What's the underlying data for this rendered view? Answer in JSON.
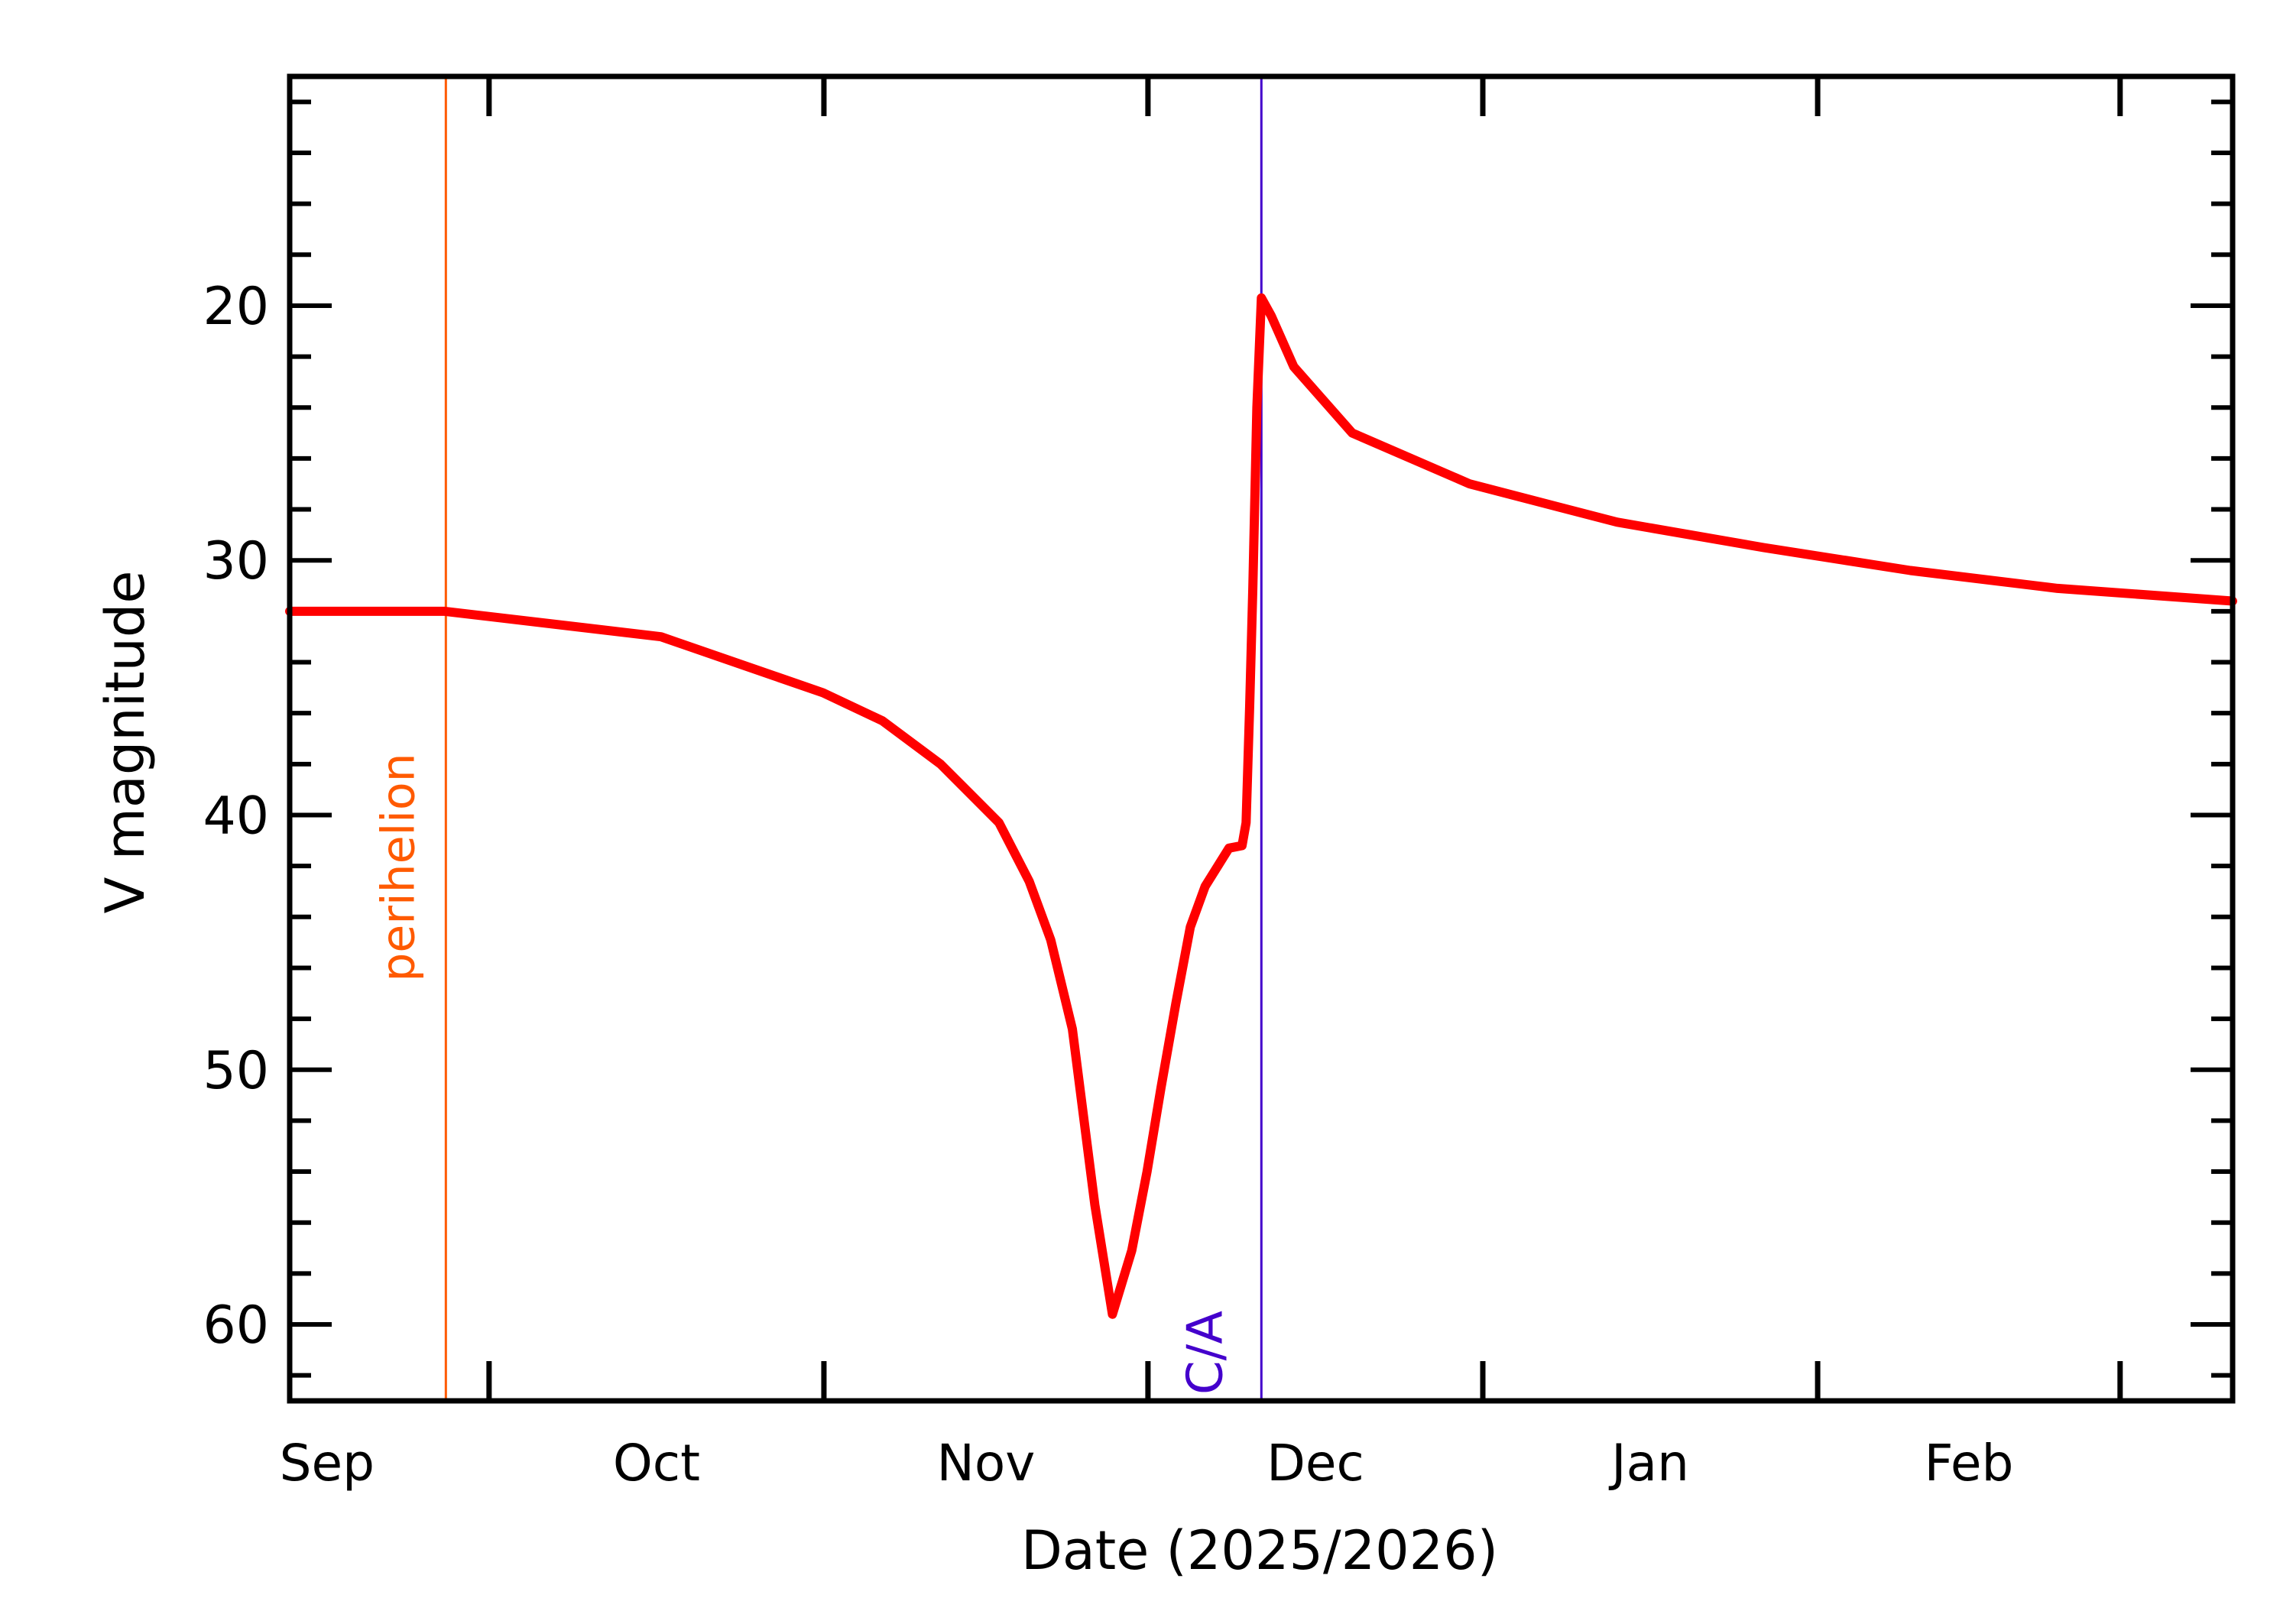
{
  "chart_data": {
    "type": "line",
    "title": "",
    "xlabel": "Date (2025/2026)",
    "ylabel": "V magnitude",
    "xlim": [
      "2025-09-12T13:00",
      "2026-03-11T10:00"
    ],
    "ylim": [
      11,
      63
    ],
    "y_inverted": true,
    "grid": false,
    "x_tick_labels": [
      {
        "label": "Sep",
        "at": "2025-09-16T00:00"
      },
      {
        "label": "Oct",
        "at": "2025-10-16T12:00"
      },
      {
        "label": "Nov",
        "at": "2025-11-16T00:00"
      },
      {
        "label": "Dec",
        "at": "2025-12-16T12:00"
      },
      {
        "label": "Jan",
        "at": "2026-01-16T12:00"
      },
      {
        "label": "Feb",
        "at": "2026-02-15T00:00"
      }
    ],
    "x_major_ticks": [
      "2025-10-01",
      "2025-11-01",
      "2025-12-01",
      "2026-01-01",
      "2026-02-01",
      "2026-03-01"
    ],
    "y_ticks": [
      20,
      30,
      40,
      50,
      60
    ],
    "y_minor_step": 2,
    "series": [
      {
        "color": "#ff0000",
        "points": [
          [
            "2025-09-12T13:00",
            32.0
          ],
          [
            "2025-09-26T22:00",
            32.0
          ],
          [
            "2025-10-16T22:00",
            33.0
          ],
          [
            "2025-10-31T22:00",
            35.2
          ],
          [
            "2025-11-06T10:00",
            36.3
          ],
          [
            "2025-11-11T19:00",
            38.0
          ],
          [
            "2025-11-17T05:00",
            40.3
          ],
          [
            "2025-11-20T00:00",
            42.6
          ],
          [
            "2025-11-22T00:00",
            44.9
          ],
          [
            "2025-11-24T00:00",
            48.4
          ],
          [
            "2025-11-26T02:00",
            55.3
          ],
          [
            "2025-11-27T17:00",
            59.6
          ],
          [
            "2025-11-29T12:00",
            57.1
          ],
          [
            "2025-11-30T22:00",
            54.0
          ],
          [
            "2025-12-02T05:00",
            50.7
          ],
          [
            "2025-12-03T14:00",
            47.4
          ],
          [
            "2025-12-04T22:00",
            44.4
          ],
          [
            "2025-12-06T07:00",
            42.8
          ],
          [
            "2025-12-08T12:00",
            41.3
          ],
          [
            "2025-12-09T17:00",
            41.2
          ],
          [
            "2025-12-10T02:00",
            40.3
          ],
          [
            "2025-12-10T10:00",
            35.7
          ],
          [
            "2025-12-10T17:00",
            31.1
          ],
          [
            "2025-12-11T02:00",
            24.0
          ],
          [
            "2025-12-11T12:00",
            19.7
          ],
          [
            "2025-12-12T10:00",
            20.4
          ],
          [
            "2025-12-14T12:00",
            22.4
          ],
          [
            "2025-12-19T22:00",
            25.0
          ],
          [
            "2025-12-30T19:00",
            27.0
          ],
          [
            "2026-01-13T10:00",
            28.5
          ],
          [
            "2026-01-27T00:00",
            29.5
          ],
          [
            "2026-02-09T14:00",
            30.4
          ],
          [
            "2026-02-23T05:00",
            31.1
          ],
          [
            "2026-03-11T10:00",
            31.6
          ]
        ]
      }
    ],
    "annotations": [
      {
        "label": "perihelion",
        "at": "2025-09-27T00:00",
        "color": "#ff5a00",
        "type": "vline"
      },
      {
        "label": "C/A",
        "at": "2025-12-11T12:00",
        "color": "#4400cc",
        "type": "vline"
      }
    ]
  }
}
